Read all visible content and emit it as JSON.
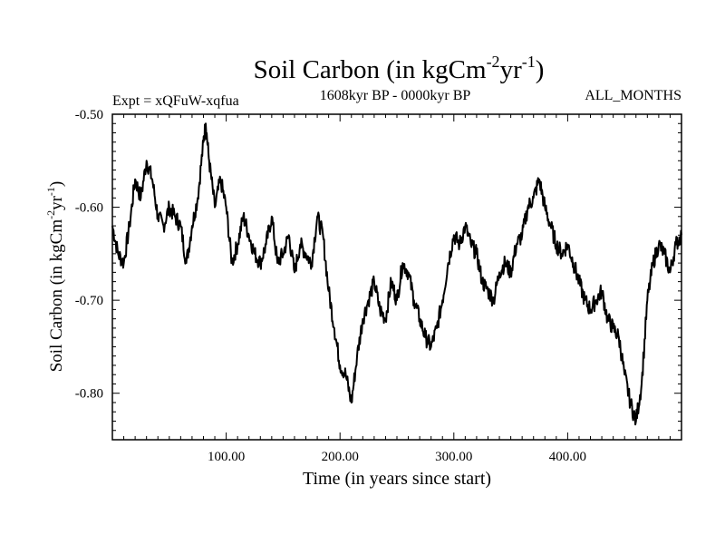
{
  "chart_data": {
    "type": "line",
    "title": "Soil Carbon (in kgCm",
    "title_sup1": "-2",
    "title_mid": "yr",
    "title_sup2": "-1",
    "title_end": ")",
    "subtitle_left": "Expt = xQFuW-xqfua",
    "subtitle_center": "1608kyr BP - 0000kyr BP",
    "subtitle_right": "ALL_MONTHS",
    "xlabel": "Time (in years since start)",
    "ylabel": "Soil Carbon (in kgCm",
    "ylabel_sup1": "-2",
    "ylabel_mid": "yr",
    "ylabel_sup2": "-1",
    "ylabel_end": ")",
    "xlim": [
      0,
      500
    ],
    "ylim": [
      -0.85,
      -0.5
    ],
    "xticks": [
      100,
      200,
      300,
      400
    ],
    "xtick_labels": [
      "100.00",
      "200.00",
      "300.00",
      "400.00"
    ],
    "yticks": [
      -0.5,
      -0.6,
      -0.7,
      -0.8
    ],
    "ytick_labels": [
      "-0.50",
      "-0.60",
      "-0.70",
      "-0.80"
    ],
    "series": [
      {
        "name": "Soil Carbon",
        "x": [
          0,
          5,
          10,
          15,
          20,
          25,
          30,
          35,
          40,
          45,
          50,
          55,
          60,
          65,
          70,
          75,
          80,
          82,
          85,
          90,
          95,
          100,
          105,
          110,
          115,
          120,
          125,
          130,
          135,
          140,
          145,
          150,
          155,
          160,
          165,
          170,
          175,
          180,
          185,
          190,
          195,
          200,
          205,
          210,
          215,
          220,
          225,
          230,
          235,
          240,
          245,
          250,
          255,
          260,
          265,
          270,
          275,
          280,
          285,
          290,
          295,
          300,
          305,
          310,
          315,
          320,
          325,
          330,
          335,
          340,
          345,
          350,
          355,
          360,
          365,
          370,
          375,
          380,
          385,
          390,
          395,
          400,
          405,
          410,
          415,
          420,
          425,
          430,
          435,
          440,
          445,
          450,
          455,
          460,
          465,
          470,
          475,
          480,
          485,
          490,
          495,
          500
        ],
        "values": [
          -0.62,
          -0.65,
          -0.66,
          -0.62,
          -0.57,
          -0.59,
          -0.55,
          -0.57,
          -0.61,
          -0.62,
          -0.6,
          -0.61,
          -0.62,
          -0.66,
          -0.62,
          -0.59,
          -0.53,
          -0.51,
          -0.55,
          -0.6,
          -0.57,
          -0.6,
          -0.66,
          -0.64,
          -0.61,
          -0.63,
          -0.65,
          -0.66,
          -0.64,
          -0.61,
          -0.66,
          -0.65,
          -0.63,
          -0.67,
          -0.64,
          -0.65,
          -0.66,
          -0.61,
          -0.63,
          -0.69,
          -0.73,
          -0.77,
          -0.78,
          -0.81,
          -0.76,
          -0.72,
          -0.7,
          -0.68,
          -0.71,
          -0.72,
          -0.68,
          -0.7,
          -0.66,
          -0.67,
          -0.7,
          -0.72,
          -0.74,
          -0.75,
          -0.73,
          -0.7,
          -0.66,
          -0.63,
          -0.64,
          -0.62,
          -0.64,
          -0.65,
          -0.68,
          -0.69,
          -0.7,
          -0.67,
          -0.66,
          -0.67,
          -0.64,
          -0.63,
          -0.6,
          -0.59,
          -0.57,
          -0.6,
          -0.62,
          -0.64,
          -0.65,
          -0.64,
          -0.66,
          -0.68,
          -0.7,
          -0.71,
          -0.7,
          -0.69,
          -0.72,
          -0.73,
          -0.74,
          -0.78,
          -0.81,
          -0.83,
          -0.79,
          -0.7,
          -0.66,
          -0.64,
          -0.65,
          -0.67,
          -0.64,
          -0.63
        ]
      }
    ]
  }
}
